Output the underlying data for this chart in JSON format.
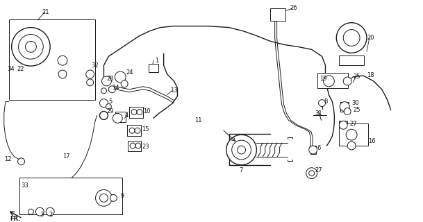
{
  "background_color": "#ffffff",
  "line_color": "#1a1a1a",
  "label_color": "#111111",
  "fig_width": 6.09,
  "fig_height": 3.2,
  "dpi": 100
}
